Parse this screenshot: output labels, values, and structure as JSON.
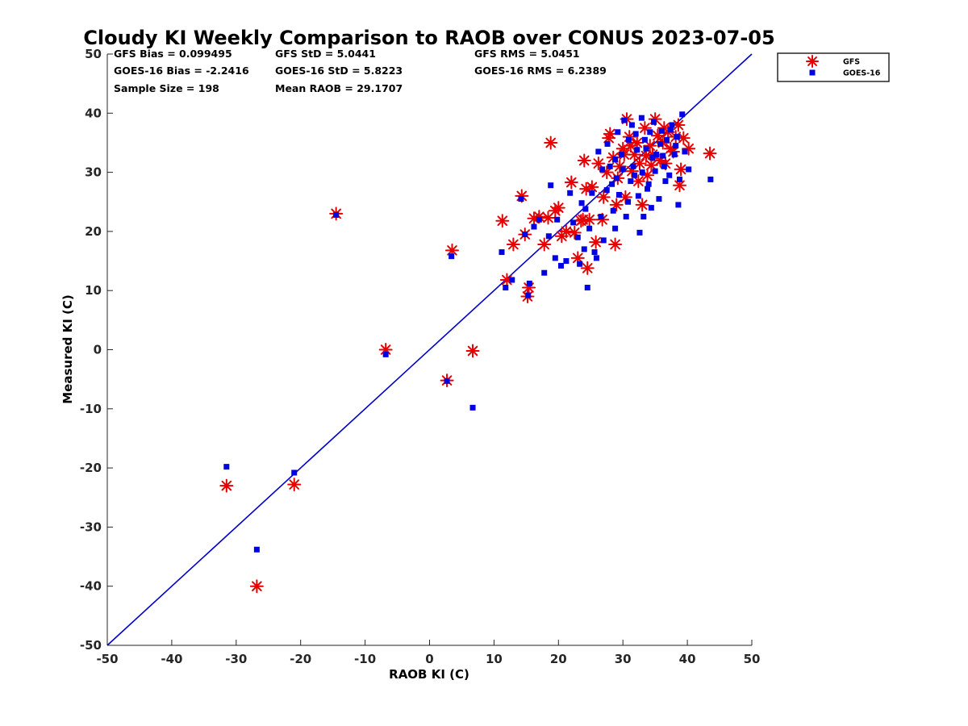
{
  "chart_data": {
    "type": "scatter",
    "title": "Cloudy KI Weekly Comparison to RAOB over CONUS 2023-07-05",
    "xlabel": "RAOB KI (C)",
    "ylabel": "Measured KI (C)",
    "xlim": [
      -50,
      50
    ],
    "ylim": [
      -50,
      50
    ],
    "xticks": [
      "-50",
      "-40",
      "-30",
      "-20",
      "-10",
      "0",
      "10",
      "20",
      "30",
      "40",
      "50"
    ],
    "yticks": [
      "-50",
      "-40",
      "-30",
      "-20",
      "-10",
      "0",
      "10",
      "20",
      "30",
      "40",
      "50"
    ],
    "grid": false,
    "legend_position": "outside top-right",
    "reference_line": {
      "x": [
        -50,
        50
      ],
      "y": [
        -50,
        50
      ],
      "color": "#0000cc"
    },
    "stats": [
      [
        "GFS Bias = 0.099495",
        "GFS StD = 5.0441",
        "GFS RMS = 5.0451"
      ],
      [
        "GOES-16 Bias = -2.2416",
        "GOES-16 StD = 5.8223",
        "GOES-16 RMS = 6.2389"
      ],
      [
        "Sample Size = 198",
        "Mean RAOB = 29.1707"
      ]
    ],
    "series": [
      {
        "name": "GFS",
        "marker": "asterisk",
        "color": "#e60000",
        "points": [
          [
            -31.5,
            -23
          ],
          [
            -26.8,
            -40
          ],
          [
            -21,
            -22.8
          ],
          [
            -14.5,
            23
          ],
          [
            -6.8,
            0
          ],
          [
            2.7,
            -5.2
          ],
          [
            3.5,
            16.8
          ],
          [
            6.7,
            -0.2
          ],
          [
            11.3,
            21.8
          ],
          [
            12,
            11.8
          ],
          [
            13,
            17.8
          ],
          [
            14.3,
            26
          ],
          [
            14.8,
            19.5
          ],
          [
            15.2,
            9
          ],
          [
            15.4,
            10.5
          ],
          [
            16.2,
            22.2
          ],
          [
            17,
            22.5
          ],
          [
            17.8,
            17.8
          ],
          [
            18.4,
            22.3
          ],
          [
            18.8,
            35
          ],
          [
            19.5,
            23.5
          ],
          [
            20,
            24
          ],
          [
            20.5,
            19.2
          ],
          [
            21.2,
            20
          ],
          [
            22,
            28.3
          ],
          [
            22.5,
            19.8
          ],
          [
            23,
            15.5
          ],
          [
            23.5,
            21.8
          ],
          [
            23.8,
            22
          ],
          [
            24,
            32
          ],
          [
            24.3,
            27.2
          ],
          [
            24.5,
            13.8
          ],
          [
            24.8,
            22
          ],
          [
            25.2,
            27.5
          ],
          [
            25.8,
            18.2
          ],
          [
            26.2,
            31.5
          ],
          [
            26.8,
            22
          ],
          [
            27,
            25.8
          ],
          [
            27.5,
            30
          ],
          [
            28,
            36.5
          ],
          [
            28.5,
            32.5
          ],
          [
            28.8,
            17.8
          ],
          [
            29,
            24.5
          ],
          [
            29.5,
            31
          ],
          [
            30,
            34
          ],
          [
            30.4,
            25.8
          ],
          [
            30.6,
            39
          ],
          [
            31,
            36
          ],
          [
            31.4,
            30.2
          ],
          [
            31.8,
            33
          ],
          [
            32.2,
            35
          ],
          [
            32.6,
            31.5
          ],
          [
            33,
            24.5
          ],
          [
            33.4,
            37.5
          ],
          [
            33.8,
            29.5
          ],
          [
            34.2,
            34.5
          ],
          [
            34.6,
            33
          ],
          [
            35,
            39
          ],
          [
            35.4,
            36.2
          ],
          [
            35.8,
            32
          ],
          [
            36.2,
            35
          ],
          [
            36.6,
            31.5
          ],
          [
            37,
            36.8
          ],
          [
            37.4,
            34
          ],
          [
            37.8,
            33.5
          ],
          [
            38.2,
            36
          ],
          [
            38.6,
            38
          ],
          [
            38.8,
            27.8
          ],
          [
            39,
            30.5
          ],
          [
            39.4,
            35.8
          ],
          [
            40.2,
            34
          ],
          [
            43.5,
            33.2
          ],
          [
            30.2,
            33
          ],
          [
            31.2,
            34.5
          ],
          [
            32.4,
            28.5
          ],
          [
            34.4,
            31.2
          ],
          [
            36.4,
            37.5
          ],
          [
            27.8,
            35.8
          ],
          [
            29.2,
            29
          ],
          [
            33.6,
            32.8
          ]
        ]
      },
      {
        "name": "GOES-16",
        "marker": "square",
        "color": "#0000e6",
        "points": [
          [
            -31.5,
            -19.8
          ],
          [
            -26.8,
            -33.8
          ],
          [
            -21,
            -20.8
          ],
          [
            -14.5,
            22.8
          ],
          [
            -6.8,
            -0.8
          ],
          [
            2.7,
            -5.3
          ],
          [
            3.4,
            15.8
          ],
          [
            6.7,
            -9.8
          ],
          [
            11.2,
            16.5
          ],
          [
            11.8,
            10.5
          ],
          [
            12.8,
            11.8
          ],
          [
            14.2,
            25.5
          ],
          [
            14.8,
            19.5
          ],
          [
            15.3,
            9.2
          ],
          [
            15.5,
            11.2
          ],
          [
            16.2,
            20.8
          ],
          [
            17,
            22
          ],
          [
            17.8,
            13
          ],
          [
            18.5,
            19.2
          ],
          [
            18.8,
            27.8
          ],
          [
            19.5,
            15.5
          ],
          [
            19.8,
            22
          ],
          [
            20.4,
            14.2
          ],
          [
            21.2,
            15
          ],
          [
            21.8,
            26.5
          ],
          [
            22.3,
            21.5
          ],
          [
            23,
            19
          ],
          [
            23.3,
            14.5
          ],
          [
            23.6,
            24.8
          ],
          [
            24,
            17
          ],
          [
            24.2,
            23.8
          ],
          [
            24.5,
            10.5
          ],
          [
            24.8,
            20.5
          ],
          [
            25.2,
            26.5
          ],
          [
            25.6,
            16.5
          ],
          [
            25.9,
            15.5
          ],
          [
            26.2,
            33.5
          ],
          [
            26.6,
            22.5
          ],
          [
            27,
            18.5
          ],
          [
            27.5,
            27
          ],
          [
            28,
            31
          ],
          [
            28.5,
            23.5
          ],
          [
            28.8,
            20.5
          ],
          [
            29,
            29
          ],
          [
            29.4,
            26.2
          ],
          [
            29.8,
            33
          ],
          [
            30.2,
            38.8
          ],
          [
            30.5,
            22.5
          ],
          [
            30.9,
            35.5
          ],
          [
            31.2,
            28.5
          ],
          [
            31.6,
            31
          ],
          [
            32,
            36.5
          ],
          [
            32.4,
            26
          ],
          [
            32.6,
            19.8
          ],
          [
            32.9,
            39.2
          ],
          [
            33.2,
            22.5
          ],
          [
            33.6,
            34
          ],
          [
            34,
            28
          ],
          [
            34.4,
            24
          ],
          [
            34.8,
            38.5
          ],
          [
            35.2,
            33
          ],
          [
            35.6,
            25.5
          ],
          [
            36,
            37
          ],
          [
            36.4,
            31
          ],
          [
            36.8,
            35.5
          ],
          [
            37.2,
            29.5
          ],
          [
            37.6,
            38
          ],
          [
            38,
            33
          ],
          [
            38.4,
            36
          ],
          [
            38.6,
            24.5
          ],
          [
            38.8,
            28.8
          ],
          [
            39.2,
            39.8
          ],
          [
            39.6,
            33.5
          ],
          [
            40.2,
            30.5
          ],
          [
            43.6,
            28.8
          ],
          [
            27.6,
            34.8
          ],
          [
            28.3,
            28
          ],
          [
            29.2,
            36.8
          ],
          [
            30,
            30.5
          ],
          [
            30.8,
            25
          ],
          [
            31.4,
            38
          ],
          [
            32.2,
            33.8
          ],
          [
            33,
            30
          ],
          [
            33.8,
            27.2
          ],
          [
            34.2,
            36.8
          ],
          [
            35,
            30.2
          ],
          [
            35.8,
            34.8
          ],
          [
            36.6,
            28.5
          ],
          [
            37.4,
            37.2
          ],
          [
            38.2,
            34.5
          ],
          [
            26.8,
            30.5
          ],
          [
            28.8,
            32.2
          ],
          [
            31.8,
            29.5
          ],
          [
            33.4,
            35.5
          ],
          [
            34.6,
            32.5
          ],
          [
            36.2,
            32.8
          ]
        ]
      }
    ]
  }
}
